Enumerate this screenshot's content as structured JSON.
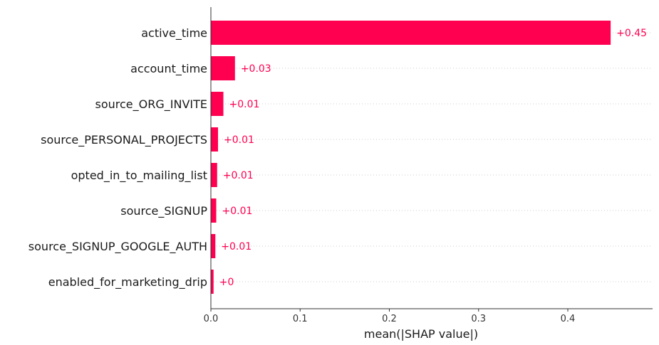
{
  "chart_data": {
    "type": "bar",
    "orientation": "horizontal",
    "categories": [
      "active_time",
      "account_time",
      "source_ORG_INVITE",
      "source_PERSONAL_PROJECTS",
      "opted_in_to_mailing_list",
      "source_SIGNUP",
      "source_SIGNUP_GOOGLE_AUTH",
      "enabled_for_marketing_drip"
    ],
    "values": [
      0.448,
      0.027,
      0.014,
      0.008,
      0.007,
      0.006,
      0.005,
      0.003
    ],
    "value_labels": [
      "+0.45",
      "+0.03",
      "+0.01",
      "+0.01",
      "+0.01",
      "+0.01",
      "+0.01",
      "+0"
    ],
    "xlabel": "mean(|SHAP value|)",
    "xlim": [
      0,
      0.495
    ],
    "xticks": [
      0,
      0.1,
      0.2,
      0.3,
      0.4
    ],
    "xtick_labels": [
      "0.0",
      "0.1",
      "0.2",
      "0.3",
      "0.4"
    ],
    "grid": "horizontal dotted",
    "bar_color": "#ff0051",
    "label_color": "#ff0051"
  }
}
